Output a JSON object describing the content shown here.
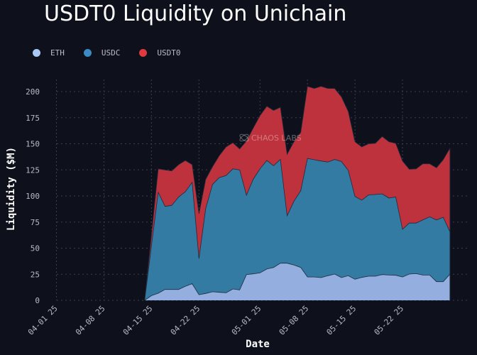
{
  "chart_data": {
    "type": "area",
    "stacked": true,
    "title": "USDT0 Liquidity on Unichain",
    "xlabel": "Date",
    "ylabel": "Liquidity ($M)",
    "ylim": [
      0,
      215
    ],
    "yticks": [
      0,
      25,
      50,
      75,
      100,
      125,
      150,
      175,
      200
    ],
    "ytick_labels": [
      "0",
      "25",
      "50",
      "75",
      "100",
      "125",
      "150",
      "175",
      "200"
    ],
    "xtick_labels": [
      "04-01 25",
      "04-08 25",
      "04-15 25",
      "04-22 25",
      "05-01 25",
      "05-08 25",
      "05-15 25",
      "05-22 25"
    ],
    "xtick_dates": [
      "2025-04-01",
      "2025-04-08",
      "2025-04-15",
      "2025-04-22",
      "2025-05-01",
      "2025-05-08",
      "2025-05-15",
      "2025-05-22"
    ],
    "xlim": [
      "2025-03-31",
      "2025-06-02"
    ],
    "grid": true,
    "legend_position": "top-left",
    "watermark": "CHAOS LABS",
    "x": [
      "2025-04-14",
      "2025-04-15",
      "2025-04-16",
      "2025-04-17",
      "2025-04-18",
      "2025-04-19",
      "2025-04-20",
      "2025-04-21",
      "2025-04-22",
      "2025-04-23",
      "2025-04-24",
      "2025-04-25",
      "2025-04-26",
      "2025-04-27",
      "2025-04-28",
      "2025-04-29",
      "2025-04-30",
      "2025-05-01",
      "2025-05-02",
      "2025-05-03",
      "2025-05-04",
      "2025-05-05",
      "2025-05-06",
      "2025-05-07",
      "2025-05-08",
      "2025-05-09",
      "2025-05-10",
      "2025-05-11",
      "2025-05-12",
      "2025-05-13",
      "2025-05-14",
      "2025-05-15",
      "2025-05-16",
      "2025-05-17",
      "2025-05-18",
      "2025-05-19",
      "2025-05-20",
      "2025-05-21",
      "2025-05-22",
      "2025-05-23",
      "2025-05-24",
      "2025-05-25",
      "2025-05-26",
      "2025-05-27",
      "2025-05-28",
      "2025-05-29"
    ],
    "series": [
      {
        "name": "ETH",
        "color": "#93aedf",
        "legend_color": "#a9c8f5",
        "values": [
          0,
          4.5,
          6.8,
          10.4,
          10.4,
          10.4,
          13.4,
          16,
          5.4,
          6.6,
          8.2,
          7.7,
          7.2,
          10.9,
          10,
          24.7,
          25.4,
          26.3,
          30,
          31.5,
          35.6,
          35.6,
          33.8,
          31.5,
          22.4,
          22.4,
          21.8,
          23.6,
          25.2,
          21.8,
          23.6,
          20.2,
          22,
          23.1,
          23.1,
          24.7,
          24.2,
          24,
          22.4,
          25.2,
          25.6,
          24.2,
          24.2,
          17.9,
          17.9,
          25.2
        ]
      },
      {
        "name": "USDC",
        "color": "#337ba3",
        "legend_color": "#3b8cc4",
        "values": [
          0,
          47.5,
          96.7,
          79.6,
          80.6,
          88.6,
          90.6,
          97,
          34.6,
          81.4,
          102.8,
          109.9,
          112.3,
          115.1,
          115,
          76,
          90.6,
          99.7,
          104,
          97.5,
          99.4,
          45.4,
          61.2,
          73.5,
          113.6,
          112.3,
          111.7,
          108.9,
          109.8,
          111.2,
          100.9,
          79.3,
          74,
          77.9,
          78.3,
          77.3,
          73.8,
          75,
          45.6,
          48.8,
          48.4,
          52.8,
          55.8,
          59.1,
          61.7,
          40.3
        ]
      },
      {
        "name": "USDT0",
        "color": "#bd323c",
        "legend_color": "#e0393f",
        "values": [
          0,
          10,
          22.5,
          35,
          33,
          31,
          30,
          17,
          43,
          28,
          17,
          21,
          27.5,
          25,
          20,
          52,
          49,
          51,
          52,
          53,
          50,
          59,
          57,
          56,
          69,
          68.3,
          71.5,
          70.5,
          68,
          62,
          56.5,
          52.5,
          51,
          49,
          49.1,
          55,
          54,
          51.5,
          65.5,
          51.6,
          52,
          53.8,
          50.8,
          50,
          55.1,
          80.5
        ]
      }
    ]
  }
}
